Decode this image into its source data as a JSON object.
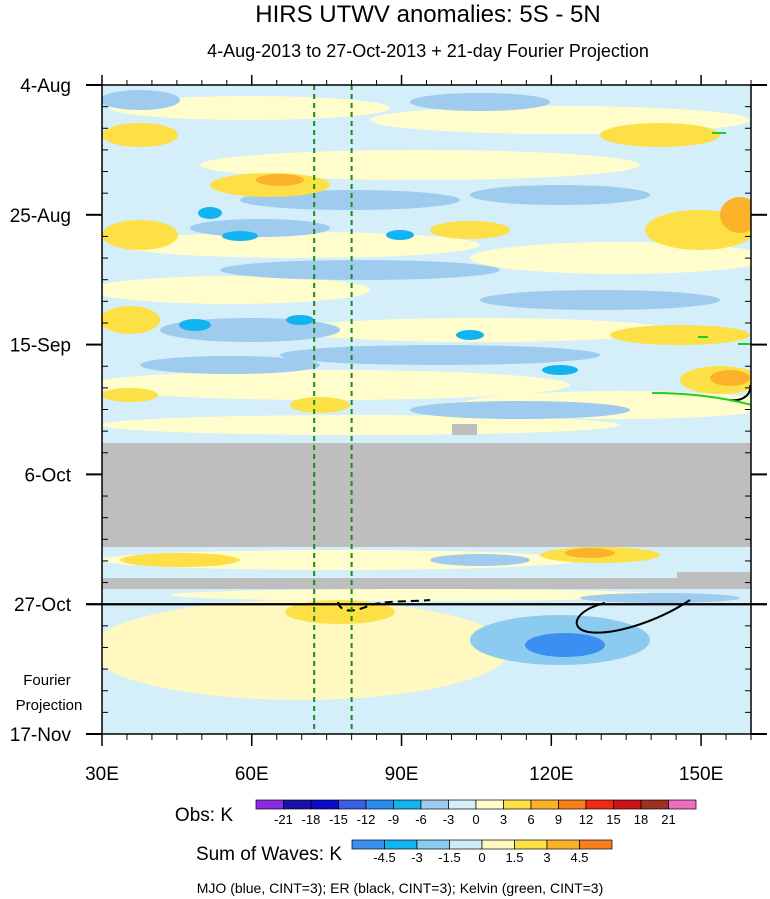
{
  "chart_data": {
    "type": "heatmap",
    "title": "HIRS UTWV anomalies: 5S - 5N",
    "subtitle": "4-Aug-2013 to 27-Oct-2013 + 21-day Fourier Projection",
    "x_ticks": [
      "30E",
      "60E",
      "90E",
      "120E",
      "150E"
    ],
    "x_tick_values": [
      30,
      60,
      90,
      120,
      150
    ],
    "xlim": [
      30,
      160
    ],
    "y_ticks": [
      "4-Aug",
      "25-Aug",
      "15-Sep",
      "6-Oct",
      "27-Oct",
      "17-Nov"
    ],
    "y_tick_days": [
      0,
      21,
      42,
      63,
      84,
      105
    ],
    "ylim_days": [
      0,
      105
    ],
    "y_label_projection_1": "Fourier",
    "y_label_projection_2": "Projection",
    "separator_day": 84,
    "missing_data_days": [
      [
        58,
        75
      ],
      [
        78.5,
        80.5
      ]
    ],
    "reference_lines_lon": [
      72.5,
      80
    ],
    "obs_colorbar": {
      "label": "Obs: K",
      "levels": [
        "-21",
        "-18",
        "-15",
        "-12",
        "-9",
        "-6",
        "-3",
        "0",
        "3",
        "6",
        "9",
        "12",
        "15",
        "18",
        "21"
      ],
      "colors": [
        "#8a2be2",
        "#1a12a8",
        "#0a0acd",
        "#3b5ee0",
        "#2a8cf0",
        "#11b4f0",
        "#9fcbee",
        "#d4eefa",
        "#fffdcc",
        "#fde046",
        "#fbb22a",
        "#f7801d",
        "#f02a12",
        "#c9121a",
        "#a03020",
        "#f06cc0"
      ]
    },
    "waves_colorbar": {
      "label": "Sum of Waves: K",
      "levels": [
        "-4.5",
        "-3",
        "-1.5",
        "0",
        "1.5",
        "3",
        "4.5"
      ],
      "colors": [
        "#3a8ff0",
        "#11b4f0",
        "#8ccbf0",
        "#cdecf8",
        "#fff8c0",
        "#fde046",
        "#fbb22a",
        "#f7801d"
      ]
    },
    "footnote": "MJO (blue, CINT=3); ER (black, CINT=3); Kelvin (green, CINT=3)"
  }
}
